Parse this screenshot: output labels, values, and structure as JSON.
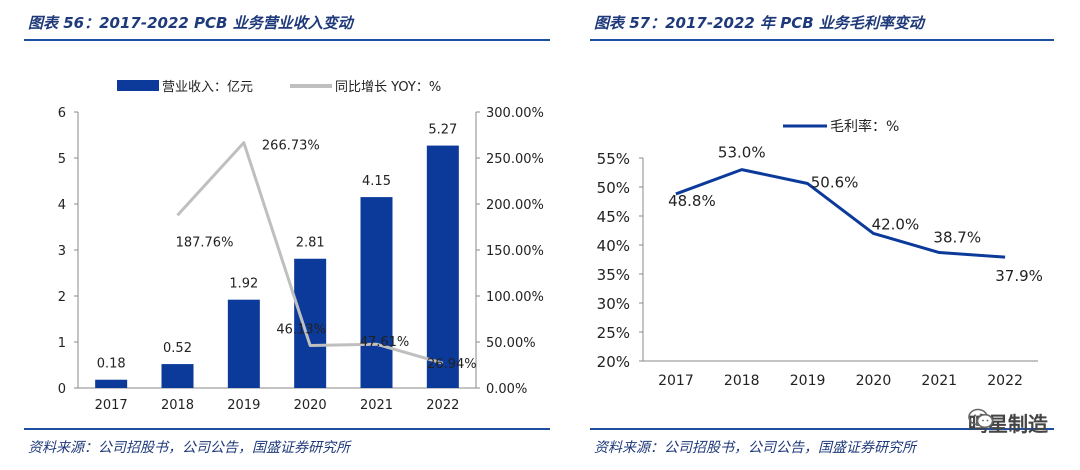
{
  "left": {
    "title": "图表 56：2017-2022 PCB 业务营业收入变动",
    "source": "资料来源：公司招股书，公司公告，国盛证券研究所"
  },
  "right": {
    "title": "图表 57：2017-2022 年 PCB 业务毛利率变动",
    "source": "资料来源：公司招股书，公司公告，国盛证券研究所"
  },
  "watermark": {
    "text": "鸣星制造"
  },
  "colors": {
    "bar": "#0b3a9a",
    "yoy_line": "#bfbfbf",
    "margin_line": "#0b3a9a",
    "rule": "#1f4fa0"
  },
  "chart_data": [
    {
      "type": "bar",
      "categories": [
        "2017",
        "2018",
        "2019",
        "2020",
        "2021",
        "2022"
      ],
      "series": [
        {
          "name": "营业收入：亿元",
          "type": "bar",
          "axis": "left",
          "values": [
            0.18,
            0.52,
            1.92,
            2.81,
            4.15,
            5.27
          ],
          "labels": [
            "0.18",
            "0.52",
            "1.92",
            "2.81",
            "4.15",
            "5.27"
          ]
        },
        {
          "name": "同比增长 YOY：%",
          "type": "line",
          "axis": "right",
          "values": [
            null,
            187.76,
            266.73,
            46.13,
            47.61,
            26.94
          ],
          "labels": [
            null,
            "187.76%",
            "266.73%",
            "46.13%",
            "47.61%",
            "26.94%"
          ]
        }
      ],
      "ylim_left": [
        0,
        6
      ],
      "yticks_left": [
        "0",
        "1",
        "2",
        "3",
        "4",
        "5",
        "6"
      ],
      "ylim_right": [
        0,
        300
      ],
      "yticks_right": [
        "0.00%",
        "50.00%",
        "100.00%",
        "150.00%",
        "200.00%",
        "250.00%",
        "300.00%"
      ],
      "legend": [
        "营业收入：亿元",
        "同比增长 YOY：%"
      ]
    },
    {
      "type": "line",
      "categories": [
        "2017",
        "2018",
        "2019",
        "2020",
        "2021",
        "2022"
      ],
      "series": [
        {
          "name": "毛利率：%",
          "values": [
            48.8,
            53.0,
            50.6,
            42.0,
            38.7,
            37.9
          ],
          "labels": [
            "48.8%",
            "53.0%",
            "50.6%",
            "42.0%",
            "38.7%",
            "37.9%"
          ]
        }
      ],
      "ylim": [
        20,
        55
      ],
      "yticks": [
        "20%",
        "25%",
        "30%",
        "35%",
        "40%",
        "45%",
        "50%",
        "55%"
      ],
      "legend": [
        "毛利率：%"
      ]
    }
  ]
}
